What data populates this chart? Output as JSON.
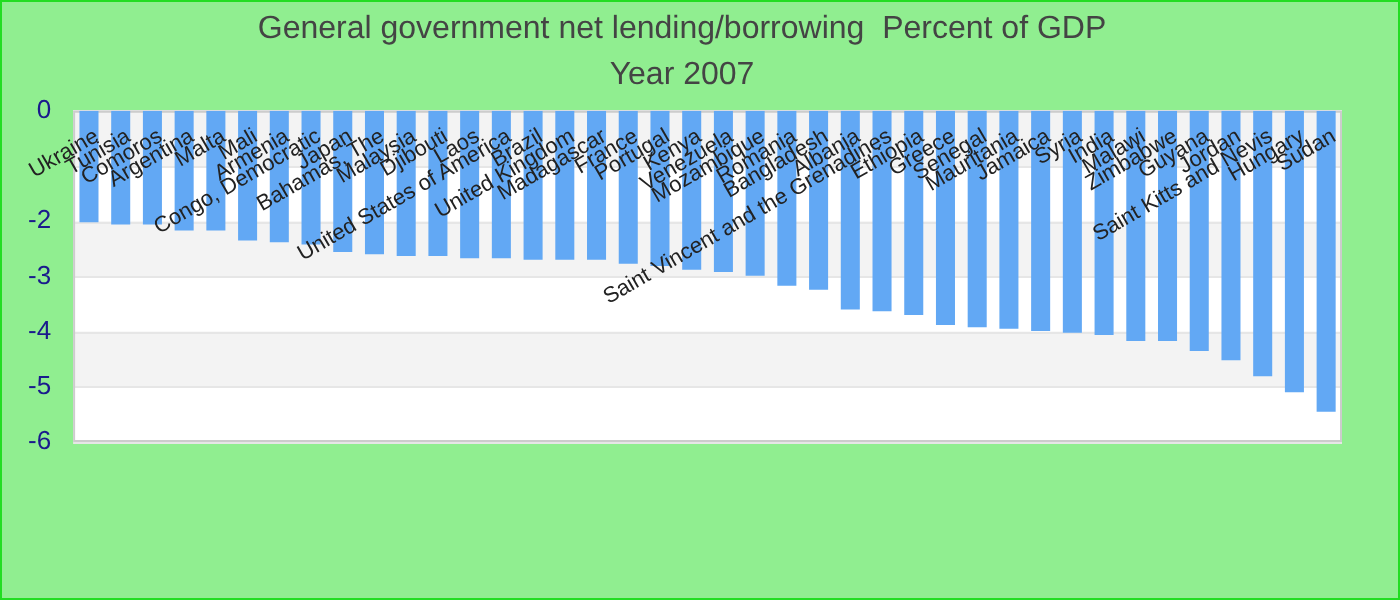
{
  "chart_data": {
    "type": "bar",
    "title": "General government net lending/borrowing  Percent of GDP",
    "subtitle": "Year 2007",
    "categories": [
      "Ukraine",
      "Tunisia",
      "Comoros",
      "Argentina",
      "Malta",
      "Mali",
      "Armenia",
      "Congo, Democratic",
      "Japan",
      "Bahamas, The",
      "Malaysia",
      "Djibouti",
      "Laos",
      "United States of America",
      "Brazil",
      "United Kingdom",
      "Madagascar",
      "France",
      "Portugal",
      "Kenya",
      "Venezuela",
      "Mozambique",
      "Romania",
      "Bangladesh",
      "Albania",
      "Saint Vincent and the Grenadines",
      "Ethiopia",
      "Greece",
      "Senegal",
      "Mauritania",
      "Jamaica",
      "Syria",
      "India",
      "Malawi",
      "Zimbabwe",
      "Guyana",
      "Jordan",
      "Saint Kitts and Nevis",
      "Hungary",
      "Sudan"
    ],
    "values": [
      -2.02,
      -2.06,
      -2.06,
      -2.17,
      -2.17,
      -2.35,
      -2.38,
      -2.42,
      -2.56,
      -2.6,
      -2.63,
      -2.63,
      -2.67,
      -2.67,
      -2.7,
      -2.7,
      -2.7,
      -2.77,
      -2.81,
      -2.88,
      -2.92,
      -2.99,
      -3.17,
      -3.24,
      -3.6,
      -3.63,
      -3.7,
      -3.88,
      -3.92,
      -3.95,
      -3.99,
      -4.02,
      -4.06,
      -4.17,
      -4.17,
      -4.35,
      -4.52,
      -4.81,
      -5.1,
      -5.45
    ],
    "color": "#62a8f4",
    "ylim": [
      -6,
      0
    ],
    "yticks": [
      0,
      {
        "value": -1,
        "label": null
      },
      -2,
      -3,
      -4,
      -5,
      -6
    ],
    "grid": "y"
  }
}
